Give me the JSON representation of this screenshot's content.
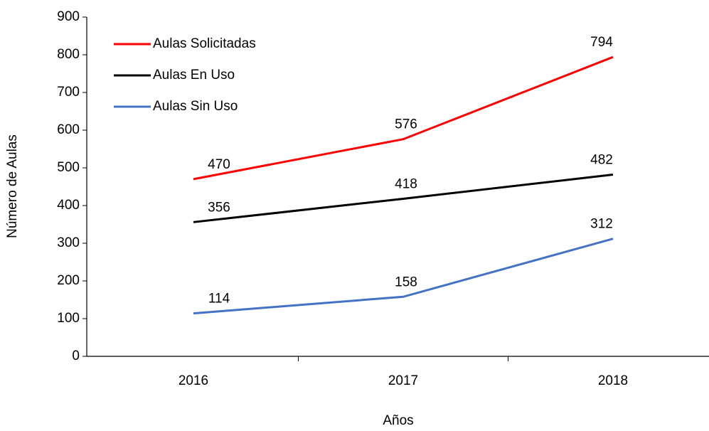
{
  "chart_data": {
    "type": "line",
    "x_label": "Años",
    "y_label": "Número de Aulas",
    "categories": [
      "2016",
      "2017",
      "2018"
    ],
    "series": [
      {
        "name": "Aulas Solicitadas",
        "color": "#ff0000",
        "values": [
          470,
          576,
          794
        ]
      },
      {
        "name": "Aulas En Uso",
        "color": "#000000",
        "values": [
          356,
          418,
          482
        ]
      },
      {
        "name": "Aulas Sin Uso",
        "color": "#4472c4",
        "values": [
          114,
          158,
          312
        ]
      }
    ],
    "ylim": [
      0,
      900
    ],
    "yticks": [
      0,
      100,
      200,
      300,
      400,
      500,
      600,
      700,
      800,
      900
    ],
    "grid": false,
    "legend": "upper left"
  }
}
